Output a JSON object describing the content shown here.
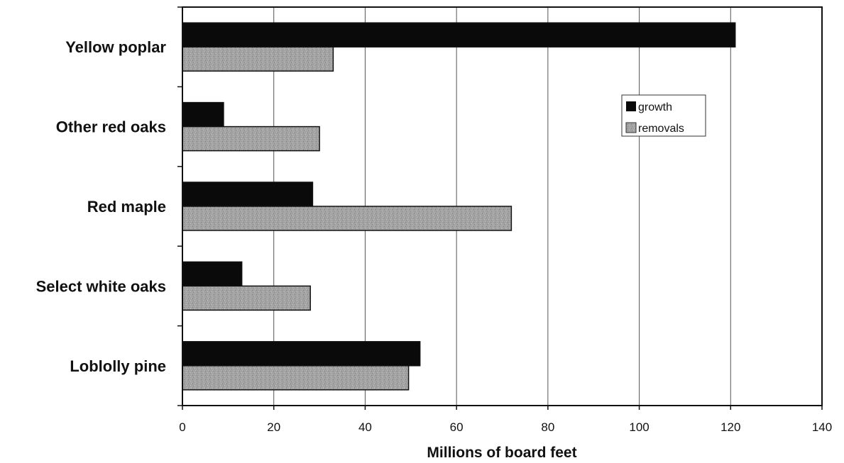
{
  "chart_data": {
    "type": "bar",
    "orientation": "horizontal",
    "categories": [
      "Yellow poplar",
      "Other red oaks",
      "Red maple",
      "Select white oaks",
      "Loblolly pine"
    ],
    "series": [
      {
        "name": "growth",
        "values": [
          121,
          9,
          28.5,
          13,
          52
        ],
        "color": "#0a0a0a"
      },
      {
        "name": "removals",
        "values": [
          33,
          30,
          72,
          28,
          49.5
        ],
        "color": "#9a9a9a"
      }
    ],
    "xlabel": "Millions of board feet",
    "ylabel": "",
    "title": "",
    "xlim": [
      0,
      140
    ],
    "xticks": [
      "0",
      "20",
      "40",
      "60",
      "80",
      "100",
      "120",
      "140"
    ],
    "grid": "vertical",
    "legend_position": "top-right"
  }
}
